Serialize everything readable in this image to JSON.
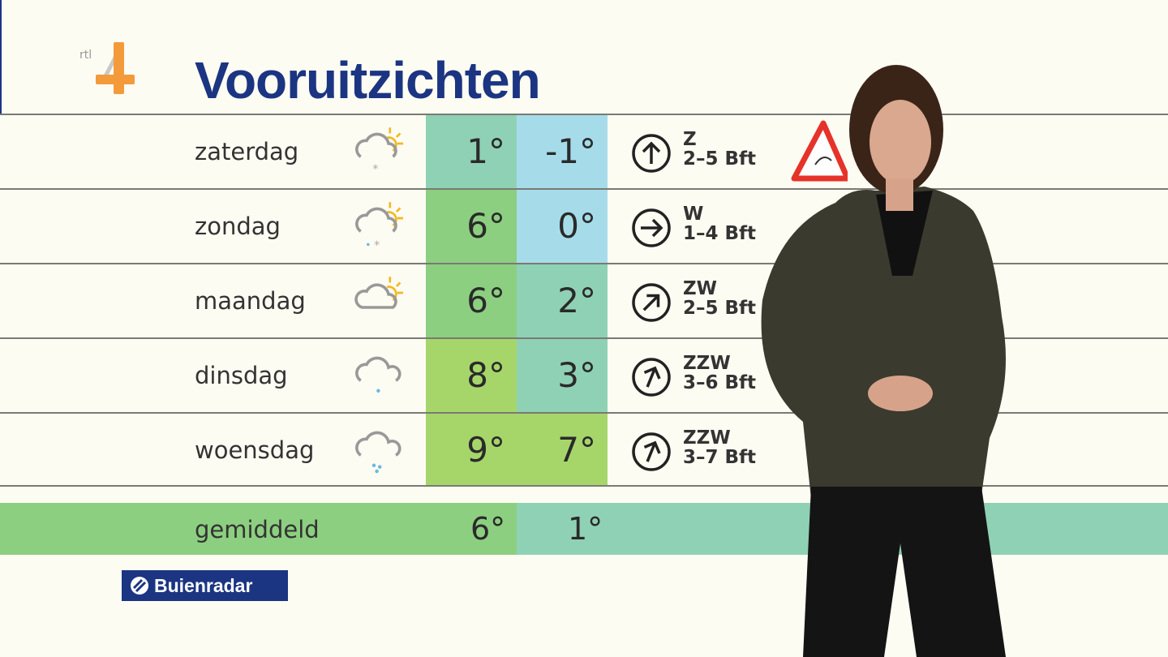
{
  "logo": {
    "text": "rtl 4"
  },
  "title": "Vooruitzichten",
  "colors": {
    "title": "#1b3582",
    "teal": "#8fd1b5",
    "green": "#8ccf80",
    "lightgreen": "#a6d66a",
    "blue": "#a6dcea"
  },
  "days": [
    {
      "day": "zaterdag",
      "icon": "partly-cloudy-snow-icon",
      "max": "1°",
      "min": "-1°",
      "max_color": "#8fd1b5",
      "min_color": "#a6dcea",
      "dir": "Z",
      "rot": 0,
      "force": "2–5 Bft"
    },
    {
      "day": "zondag",
      "icon": "partly-cloudy-sleet-icon",
      "max": "6°",
      "min": "0°",
      "max_color": "#8ccf80",
      "min_color": "#a6dcea",
      "dir": "W",
      "rot": 90,
      "force": "1–4 Bft"
    },
    {
      "day": "maandag",
      "icon": "partly-cloudy-icon",
      "max": "6°",
      "min": "2°",
      "max_color": "#8ccf80",
      "min_color": "#8fd1b5",
      "dir": "ZW",
      "rot": 45,
      "force": "2–5 Bft"
    },
    {
      "day": "dinsdag",
      "icon": "cloud-light-rain-icon",
      "max": "8°",
      "min": "3°",
      "max_color": "#a6d66a",
      "min_color": "#8fd1b5",
      "dir": "ZZW",
      "rot": 22,
      "force": "3–6 Bft"
    },
    {
      "day": "woensdag",
      "icon": "cloud-rain-icon",
      "max": "9°",
      "min": "7°",
      "max_color": "#a6d66a",
      "min_color": "#a6d66a",
      "dir": "ZZW",
      "rot": 22,
      "force": "3–7 Bft"
    }
  ],
  "average": {
    "label": "gemiddeld",
    "max": "6°",
    "min": "1°"
  },
  "brand": {
    "label": "Buienradar"
  }
}
